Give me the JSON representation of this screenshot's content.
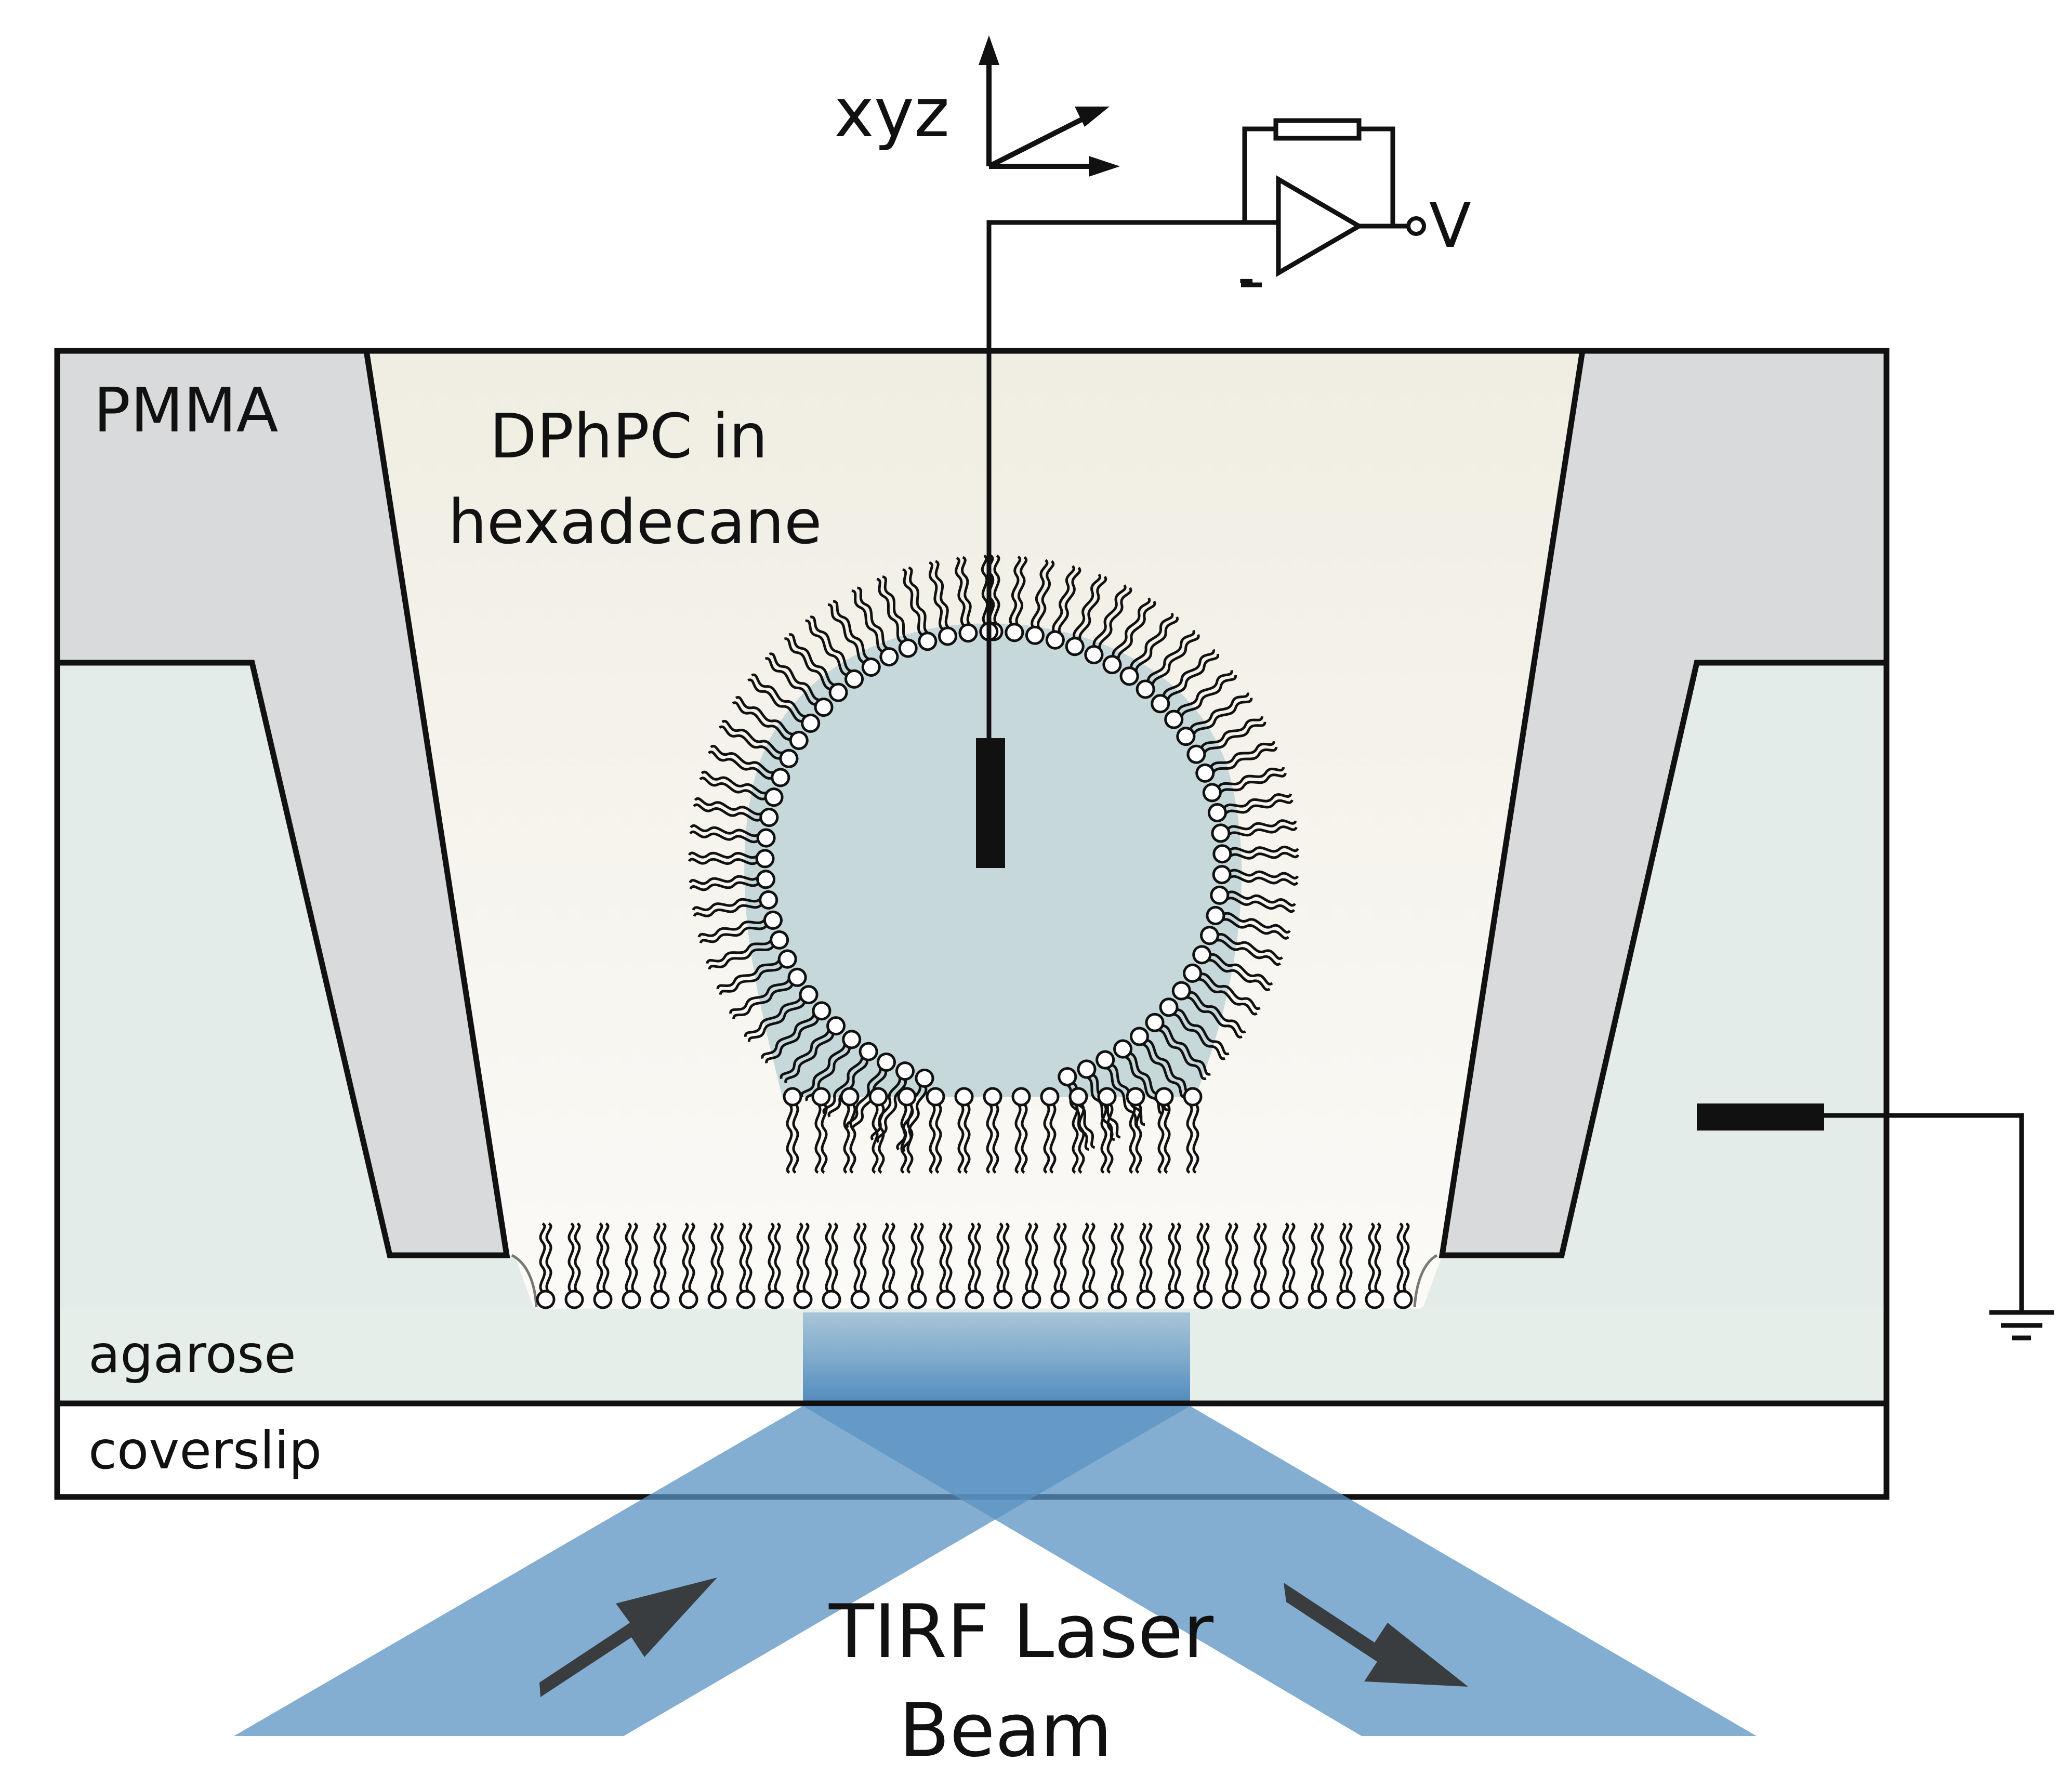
{
  "labels": {
    "pmma": "PMMA",
    "solvent_line1": "DPhPC in",
    "solvent_line2": "hexadecane",
    "agarose": "agarose",
    "coverslip": "coverslip",
    "laser_line1": "TIRF Laser",
    "laser_line2": "Beam",
    "axes": "xyz",
    "voltage": "V",
    "minus": "-"
  },
  "colors": {
    "pmma_gray": "#d9dadb",
    "oil_top": "#f0ede2",
    "oil_bottom": "#fbfaf7",
    "agarose": "#e3ece8",
    "droplet_interior": "#c6d8da",
    "laser_beam": "#5b93c2",
    "arrow": "#3a3d3f",
    "outline": "#111111"
  },
  "icons": {
    "lipid": "lipid-molecule-icon",
    "ground": "ground-symbol-icon",
    "amplifier": "op-amp-icon",
    "electrode": "electrode-icon"
  }
}
